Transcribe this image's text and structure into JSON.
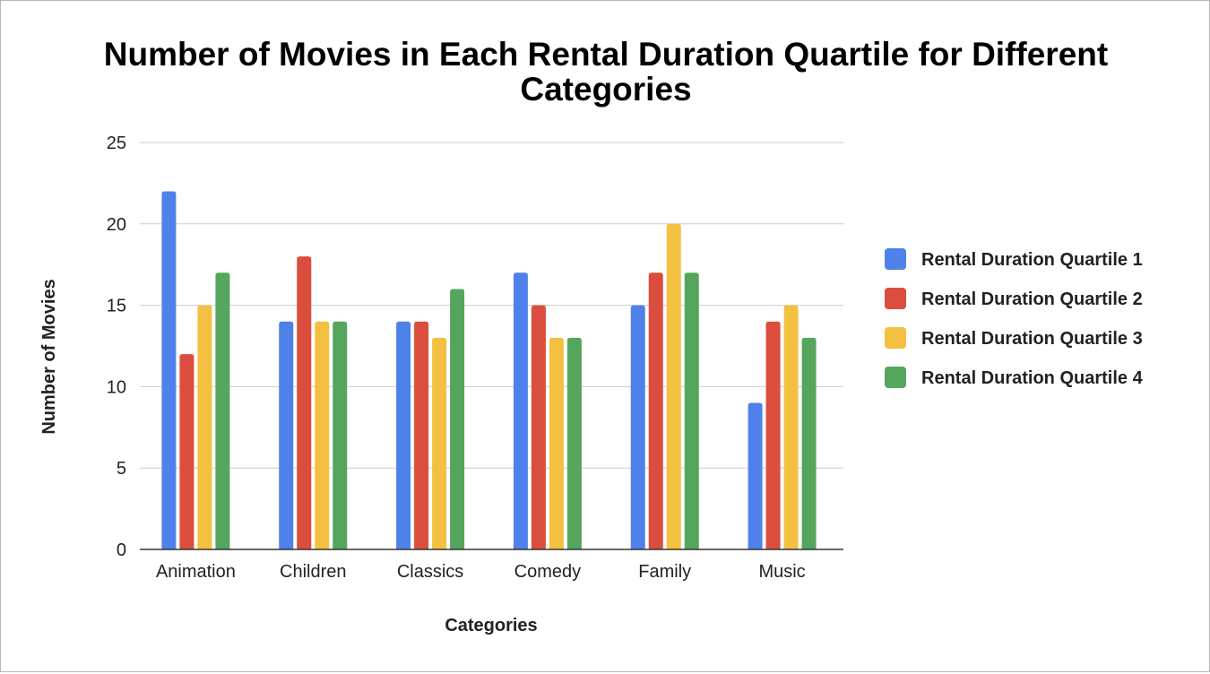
{
  "chart_data": {
    "type": "bar",
    "title": "Number of Movies in Each Rental Duration Quartile for Different Categories",
    "xlabel": "Categories",
    "ylabel": "Number of Movies",
    "categories": [
      "Animation",
      "Children",
      "Classics",
      "Comedy",
      "Family",
      "Music"
    ],
    "series": [
      {
        "name": "Rental Duration Quartile 1",
        "color": "#4f81eb",
        "values": [
          22,
          14,
          14,
          17,
          15,
          9
        ]
      },
      {
        "name": "Rental Duration Quartile 2",
        "color": "#db4d3d",
        "values": [
          12,
          18,
          14,
          15,
          17,
          14
        ]
      },
      {
        "name": "Rental Duration Quartile 3",
        "color": "#f4c042",
        "values": [
          15,
          14,
          13,
          13,
          20,
          15
        ]
      },
      {
        "name": "Rental Duration Quartile 4",
        "color": "#55a65c",
        "values": [
          17,
          14,
          16,
          13,
          17,
          13
        ]
      }
    ],
    "ylim": [
      0,
      25
    ],
    "yticks": [
      "0",
      "5",
      "10",
      "15",
      "20",
      "25"
    ],
    "grid": true,
    "legend_position": "right"
  }
}
